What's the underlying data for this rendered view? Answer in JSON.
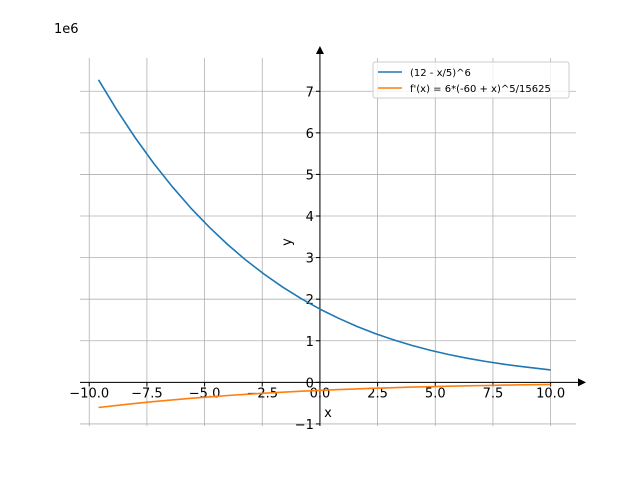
{
  "chart_data": {
    "type": "line",
    "title": "",
    "xlabel": "x",
    "ylabel": "y",
    "y_offset_label": "1e6",
    "xlim": [
      -10.4,
      11.1
    ],
    "ylim": [
      -1.05,
      7.8
    ],
    "x_ticks": [
      -10.0,
      -7.5,
      -5.0,
      -2.5,
      0.0,
      2.5,
      5.0,
      7.5,
      10.0
    ],
    "x_tick_labels": [
      "−10.0",
      "−7.5",
      "−5.0",
      "−2.5",
      "0.0",
      "2.5",
      "5.0",
      "7.5",
      "10.0"
    ],
    "y_ticks": [
      -1,
      0,
      1,
      2,
      3,
      4,
      5,
      6,
      7
    ],
    "y_tick_labels": [
      "−1",
      "0",
      "1",
      "2",
      "3",
      "4",
      "5",
      "6",
      "7"
    ],
    "grid": true,
    "legend_position": "top-right",
    "x": [
      -9.6,
      -8.8,
      -8.0,
      -7.2,
      -6.4,
      -5.6,
      -4.8,
      -4.0,
      -3.2,
      -2.4,
      -1.6,
      -0.8,
      0.0,
      0.8,
      1.6,
      2.4,
      3.2,
      4.0,
      4.8,
      5.6,
      6.4,
      7.2,
      8.0,
      8.8,
      10.0
    ],
    "series": [
      {
        "name": "(12 - x/5)^6",
        "color": "#1f77b4",
        "values": [
          7.276,
          6.546,
          5.877,
          5.264,
          4.705,
          4.196,
          3.734,
          3.314,
          2.935,
          2.593,
          2.285,
          2.009,
          1.762,
          1.542,
          1.346,
          1.173,
          1.02,
          0.886,
          0.769,
          0.666,
          0.577,
          0.5,
          0.433,
          0.375,
          0.3
        ],
        "values_scale_note": ""
      },
      {
        "name": "f'(x) = 6*(-60 + x)^5/15625",
        "color": "#ff7f0e",
        "values": [
          -0.606,
          -0.555,
          -0.507,
          -0.463,
          -0.422,
          -0.384,
          -0.349,
          -0.317,
          -0.288,
          -0.261,
          -0.236,
          -0.214,
          -0.1935,
          -0.175,
          -0.158,
          -0.142,
          -0.128,
          -0.115,
          -0.104,
          -0.093,
          -0.0835,
          -0.075,
          -0.067,
          -0.06,
          -0.05
        ]
      }
    ]
  }
}
